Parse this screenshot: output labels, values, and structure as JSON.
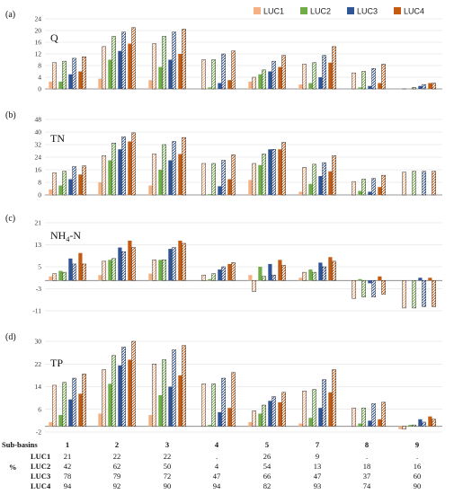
{
  "figure": {
    "legend_items": [
      {
        "name": "LUC1",
        "color": "#F4B183"
      },
      {
        "name": "LUC2",
        "color": "#70AD47"
      },
      {
        "name": "LUC3",
        "color": "#2F5597"
      },
      {
        "name": "LUC4",
        "color": "#C55A11"
      }
    ],
    "table": {
      "row_header": "Sub-basins",
      "percent_label": "%",
      "columns": [
        "1",
        "2",
        "3",
        "4",
        "5",
        "7",
        "8",
        "9"
      ],
      "rows": [
        {
          "label": "LUC1",
          "values": [
            "21",
            "22",
            "22",
            ".",
            "26",
            "9",
            ".",
            "."
          ]
        },
        {
          "label": "LUC2",
          "values": [
            "42",
            "62",
            "50",
            "4",
            "54",
            "13",
            "18",
            "16"
          ]
        },
        {
          "label": "LUC3",
          "values": [
            "78",
            "79",
            "72",
            "47",
            "66",
            "47",
            "37",
            "60"
          ]
        },
        {
          "label": "LUC4",
          "values": [
            "94",
            "92",
            "90",
            "94",
            "82",
            "93",
            "74",
            "90"
          ]
        }
      ]
    }
  },
  "chart_data": [
    {
      "type": "bar",
      "panel": "(a)",
      "variable": "Q",
      "categories": [
        "1",
        "2",
        "3",
        "4",
        "5",
        "7",
        "8",
        "9"
      ],
      "ylim": [
        0,
        24
      ],
      "yticks": [
        0,
        4,
        8,
        12,
        16,
        20,
        24
      ],
      "series": [
        {
          "name": "LUC1",
          "values": [
            2.5,
            3.5,
            3.0,
            0,
            2.5,
            1.5,
            0,
            0
          ],
          "hatched": [
            9.0,
            14.5,
            15.5,
            10.0,
            4.0,
            8.5,
            5.5,
            0
          ]
        },
        {
          "name": "LUC2",
          "values": [
            2.5,
            10.0,
            7.5,
            0.5,
            5.0,
            2.0,
            0.5,
            0
          ],
          "hatched": [
            9.5,
            18.0,
            18.0,
            10.0,
            6.5,
            9.0,
            6.0,
            0.5
          ]
        },
        {
          "name": "LUC3",
          "values": [
            5.0,
            13.0,
            10.0,
            2.0,
            6.0,
            4.0,
            1.0,
            1.0
          ],
          "hatched": [
            10.5,
            19.5,
            19.5,
            12.0,
            9.5,
            11.5,
            7.0,
            1.5
          ]
        },
        {
          "name": "LUC4",
          "values": [
            6.0,
            15.5,
            12.0,
            3.0,
            7.5,
            9.0,
            2.0,
            2.0
          ],
          "hatched": [
            11.0,
            21.0,
            20.5,
            13.0,
            11.5,
            14.5,
            8.5,
            2.0
          ]
        }
      ]
    },
    {
      "type": "bar",
      "panel": "(b)",
      "variable": "TN",
      "categories": [
        "1",
        "2",
        "3",
        "4",
        "5",
        "7",
        "8",
        "9"
      ],
      "ylim": [
        0,
        48
      ],
      "yticks": [
        0,
        8,
        16,
        24,
        32,
        40,
        48
      ],
      "series": [
        {
          "name": "LUC1",
          "values": [
            3.5,
            8.0,
            6.0,
            0,
            9.5,
            2.0,
            0,
            0
          ],
          "hatched": [
            14.0,
            25.0,
            26.0,
            20.0,
            20.0,
            17.5,
            8.5,
            14.5
          ]
        },
        {
          "name": "LUC2",
          "values": [
            6.0,
            22.0,
            16.0,
            0.5,
            19.0,
            7.0,
            2.5,
            0
          ],
          "hatched": [
            15.0,
            33.0,
            32.0,
            20.0,
            26.0,
            19.5,
            10.0,
            15.0
          ]
        },
        {
          "name": "LUC3",
          "values": [
            10.0,
            29.0,
            22.0,
            5.5,
            29.0,
            12.0,
            2.0,
            0
          ],
          "hatched": [
            18.0,
            37.0,
            34.0,
            22.0,
            29.0,
            20.5,
            10.5,
            15.0
          ]
        },
        {
          "name": "LUC4",
          "values": [
            13.0,
            34.0,
            26.0,
            10.0,
            29.0,
            15.0,
            5.0,
            0
          ],
          "hatched": [
            18.5,
            39.5,
            36.5,
            25.5,
            33.5,
            25.0,
            12.5,
            15.0
          ]
        }
      ]
    },
    {
      "type": "bar",
      "panel": "(c)",
      "variable": "NH4-N",
      "categories": [
        "1",
        "2",
        "3",
        "4",
        "5",
        "7",
        "8",
        "9"
      ],
      "ylim": [
        -11,
        21
      ],
      "yticks": [
        -11,
        -3,
        5,
        13,
        21
      ],
      "series": [
        {
          "name": "LUC1",
          "values": [
            1.5,
            2.0,
            2.5,
            0,
            2.0,
            1.0,
            0,
            0
          ],
          "hatched": [
            2.5,
            7.0,
            7.5,
            2.0,
            -4.0,
            3.0,
            -6.5,
            -10.0
          ]
        },
        {
          "name": "LUC2",
          "values": [
            3.5,
            7.5,
            7.5,
            0.5,
            5.0,
            4.0,
            0.5,
            0
          ],
          "hatched": [
            3.0,
            8.0,
            7.5,
            2.5,
            1.5,
            3.0,
            -6.0,
            -10.0
          ]
        },
        {
          "name": "LUC3",
          "values": [
            8.0,
            12.0,
            11.5,
            4.0,
            6.0,
            6.5,
            -1.0,
            1.0
          ],
          "hatched": [
            6.0,
            10.5,
            12.0,
            5.0,
            2.0,
            5.0,
            -6.0,
            -9.5
          ]
        },
        {
          "name": "LUC4",
          "values": [
            10.0,
            14.5,
            14.5,
            6.0,
            7.5,
            8.5,
            1.5,
            1.0
          ],
          "hatched": [
            6.0,
            12.0,
            13.5,
            6.5,
            5.5,
            7.0,
            -5.0,
            -9.5
          ]
        }
      ]
    },
    {
      "type": "bar",
      "panel": "(d)",
      "variable": "TP",
      "categories": [
        "1",
        "2",
        "3",
        "4",
        "5",
        "7",
        "8",
        "9"
      ],
      "ylim": [
        -2,
        30
      ],
      "yticks": [
        -2,
        6,
        14,
        22,
        30
      ],
      "series": [
        {
          "name": "LUC1",
          "values": [
            1.5,
            4.5,
            4.0,
            0,
            1.5,
            1.0,
            0,
            -1.0
          ],
          "hatched": [
            14.5,
            20.0,
            22.0,
            15.0,
            5.5,
            12.5,
            6.5,
            -1.0
          ]
        },
        {
          "name": "LUC2",
          "values": [
            4.0,
            15.0,
            11.0,
            0.5,
            4.5,
            3.0,
            1.0,
            0.5
          ],
          "hatched": [
            15.5,
            25.0,
            23.5,
            15.0,
            7.5,
            13.0,
            6.5,
            0.5
          ]
        },
        {
          "name": "LUC3",
          "values": [
            9.5,
            21.5,
            14.0,
            5.0,
            9.0,
            6.5,
            2.0,
            2.5
          ],
          "hatched": [
            17.0,
            28.0,
            27.0,
            17.0,
            10.5,
            16.5,
            8.0,
            1.5
          ]
        },
        {
          "name": "LUC4",
          "values": [
            11.5,
            23.5,
            18.0,
            6.5,
            8.5,
            12.0,
            2.5,
            3.5
          ],
          "hatched": [
            18.5,
            30.0,
            28.5,
            19.0,
            12.0,
            20.0,
            8.5,
            2.5
          ]
        }
      ]
    }
  ]
}
